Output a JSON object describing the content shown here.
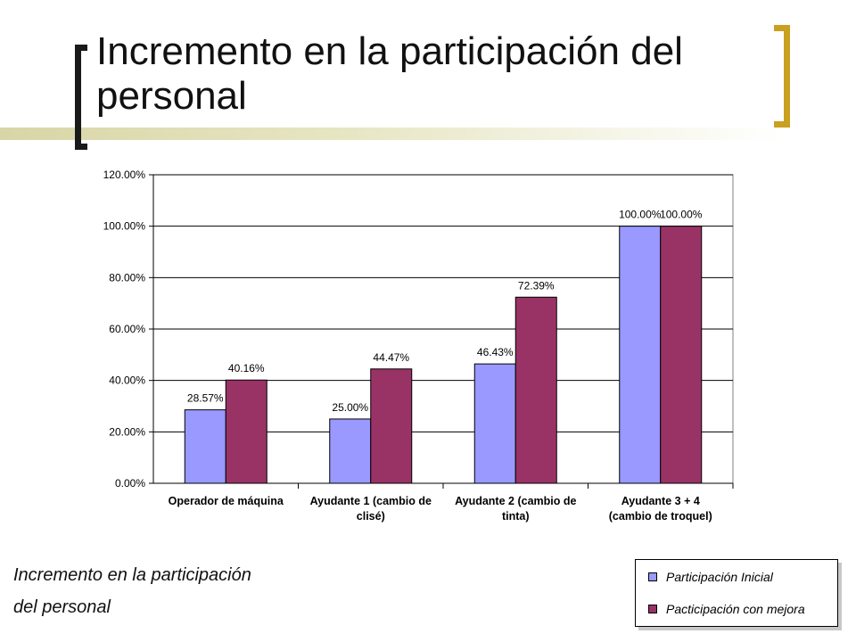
{
  "slide": {
    "title": "Incremento en la participación del personal",
    "caption_line1": "Incremento en la participación",
    "caption_line2": "del personal"
  },
  "colors": {
    "series_inicial": "#9999ff",
    "series_mejora": "#993366",
    "bracket_left": "#1a1a1a",
    "bracket_right": "#c9a020"
  },
  "chart_data": {
    "type": "bar",
    "categories": [
      [
        "Operador de máquina"
      ],
      [
        "Ayudante 1 (cambio de",
        "clisé)"
      ],
      [
        "Ayudante 2 (cambio de",
        "tinta)"
      ],
      [
        "Ayudante 3 + 4",
        "(cambio de troquel)"
      ]
    ],
    "series": [
      {
        "name": "Participación Inicial",
        "values": [
          28.57,
          25.0,
          46.43,
          100.0
        ]
      },
      {
        "name": "Pacticipación con mejora",
        "values": [
          40.16,
          44.47,
          72.39,
          100.0
        ]
      }
    ],
    "data_labels": [
      [
        "28.57%",
        "25.00%",
        "46.43%",
        "100.00%"
      ],
      [
        "40.16%",
        "44.47%",
        "72.39%",
        "100.00%"
      ]
    ],
    "yticks": [
      "0.00%",
      "20.00%",
      "40.00%",
      "60.00%",
      "80.00%",
      "100.00%",
      "120.00%"
    ],
    "ylim": [
      0,
      120
    ],
    "grid": true,
    "legend_position": "bottom-right",
    "title": "",
    "xlabel": "",
    "ylabel": ""
  }
}
